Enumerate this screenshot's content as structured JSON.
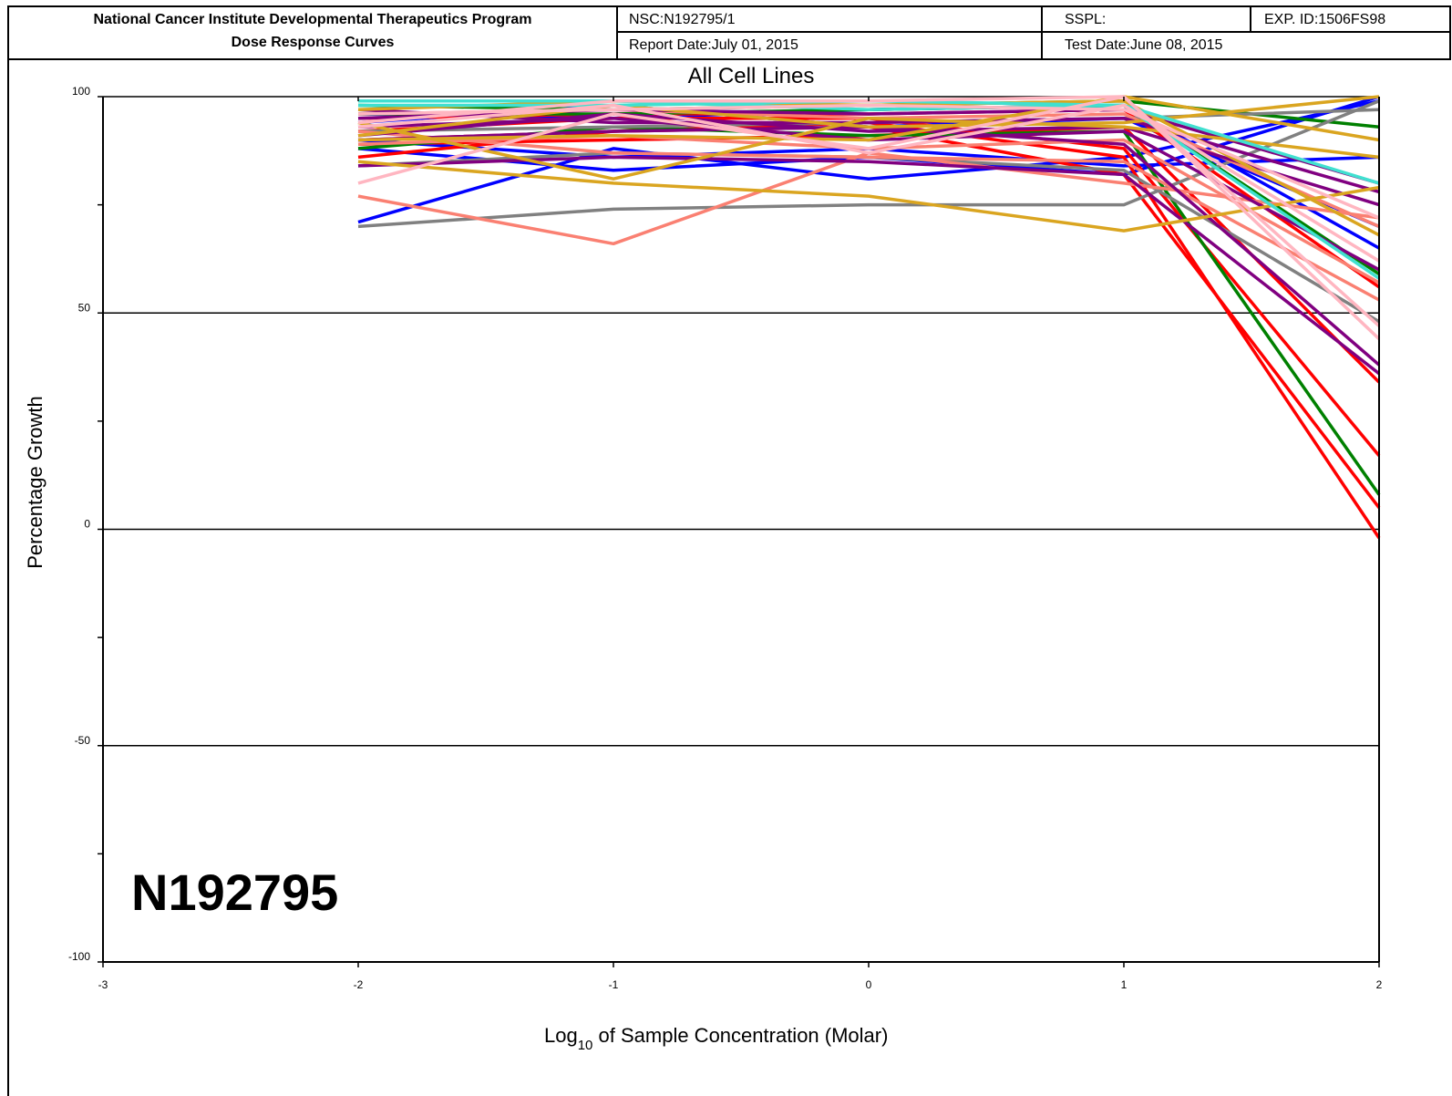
{
  "header": {
    "title_line1": "National Cancer Institute Developmental Therapeutics Program",
    "title_line2": "Dose Response Curves",
    "nsc": "NSC:N192795/1",
    "report_date": "Report Date:July 01, 2015",
    "sspl": "SSPL:",
    "exp_id": "EXP. ID:1506FS98",
    "test_date": "Test Date:June 08, 2015"
  },
  "chart_data": {
    "type": "line",
    "title": "All Cell Lines",
    "xlabel_pre": "Log",
    "xlabel_sub": "10",
    "xlabel_post": " of Sample Concentration (Molar)",
    "ylabel": "Percentage Growth",
    "compound_label": "N192795",
    "xlim": [
      -3,
      2
    ],
    "ylim": [
      -100,
      100
    ],
    "x_ticks": [
      -3,
      -2,
      -1,
      0,
      1,
      2
    ],
    "y_ticks_labeled": [
      100,
      50,
      0,
      -50,
      -100
    ],
    "y_ticks_minor": [
      75,
      25,
      -25,
      -75
    ],
    "gridlines_y": [
      50,
      0,
      -50
    ],
    "x": [
      -2,
      -1,
      0,
      1,
      2
    ],
    "series": [
      {
        "color": "#0000ff",
        "values": [
          71,
          88,
          81,
          86,
          99
        ]
      },
      {
        "color": "#0000ff",
        "values": [
          90,
          86,
          88,
          84,
          86
        ]
      },
      {
        "color": "#0000ff",
        "values": [
          94,
          98,
          93,
          95,
          70
        ]
      },
      {
        "color": "#0000ff",
        "values": [
          96,
          95,
          97,
          98,
          65
        ]
      },
      {
        "color": "#0000ff",
        "values": [
          88,
          83,
          86,
          82,
          100
        ]
      },
      {
        "color": "#ff0000",
        "values": [
          86,
          92,
          94,
          86,
          -2
        ]
      },
      {
        "color": "#ff0000",
        "values": [
          90,
          92,
          93,
          82,
          5
        ]
      },
      {
        "color": "#ff0000",
        "values": [
          92,
          95,
          95,
          88,
          17
        ]
      },
      {
        "color": "#ff0000",
        "values": [
          89,
          90,
          91,
          93,
          34
        ]
      },
      {
        "color": "#ff0000",
        "values": [
          95,
          96,
          96,
          97,
          56
        ]
      },
      {
        "color": "#008000",
        "values": [
          88,
          93,
          91,
          92,
          8
        ]
      },
      {
        "color": "#008000",
        "values": [
          98,
          97,
          98,
          99,
          93
        ]
      },
      {
        "color": "#008000",
        "values": [
          96,
          96,
          97,
          98,
          59
        ]
      },
      {
        "color": "#808080",
        "values": [
          70,
          74,
          75,
          75,
          99
        ]
      },
      {
        "color": "#808080",
        "values": [
          84,
          87,
          86,
          83,
          48
        ]
      },
      {
        "color": "#808080",
        "values": [
          92,
          93,
          94,
          95,
          97
        ]
      },
      {
        "color": "#fa8072",
        "values": [
          77,
          66,
          87,
          80,
          72
        ]
      },
      {
        "color": "#fa8072",
        "values": [
          92,
          87,
          86,
          85,
          53
        ]
      },
      {
        "color": "#fa8072",
        "values": [
          96,
          97,
          95,
          96,
          70
        ]
      },
      {
        "color": "#fa8072",
        "values": [
          89,
          91,
          88,
          90,
          57
        ]
      },
      {
        "color": "#800080",
        "values": [
          84,
          86,
          85,
          82,
          36
        ]
      },
      {
        "color": "#800080",
        "values": [
          93,
          95,
          90,
          92,
          60
        ]
      },
      {
        "color": "#800080",
        "values": [
          97,
          94,
          94,
          95,
          78
        ]
      },
      {
        "color": "#800080",
        "values": [
          90,
          92,
          93,
          89,
          38
        ]
      },
      {
        "color": "#800080",
        "values": [
          95,
          97,
          96,
          97,
          80
        ]
      },
      {
        "color": "#800080",
        "values": [
          91,
          96,
          92,
          93,
          75
        ]
      },
      {
        "color": "#daa520",
        "values": [
          85,
          80,
          77,
          69,
          79
        ]
      },
      {
        "color": "#daa520",
        "values": [
          91,
          98,
          93,
          94,
          100
        ]
      },
      {
        "color": "#daa520",
        "values": [
          94,
          81,
          95,
          93,
          86
        ]
      },
      {
        "color": "#daa520",
        "values": [
          90,
          91,
          90,
          100,
          90
        ]
      },
      {
        "color": "#daa520",
        "values": [
          97,
          99,
          98,
          99,
          68
        ]
      },
      {
        "color": "#40e0d0",
        "values": [
          99,
          99,
          97,
          98,
          80
        ]
      },
      {
        "color": "#40e0d0",
        "values": [
          98,
          98,
          99,
          98,
          58
        ]
      },
      {
        "color": "#ffb6c1",
        "values": [
          80,
          96,
          88,
          100,
          44
        ]
      },
      {
        "color": "#ffb6c1",
        "values": [
          93,
          98,
          87,
          98,
          62
        ]
      },
      {
        "color": "#ffb6c1",
        "values": [
          96,
          97,
          98,
          97,
          72
        ]
      },
      {
        "color": "#ffb6c1",
        "values": [
          94,
          99,
          99,
          100,
          47
        ]
      }
    ]
  }
}
